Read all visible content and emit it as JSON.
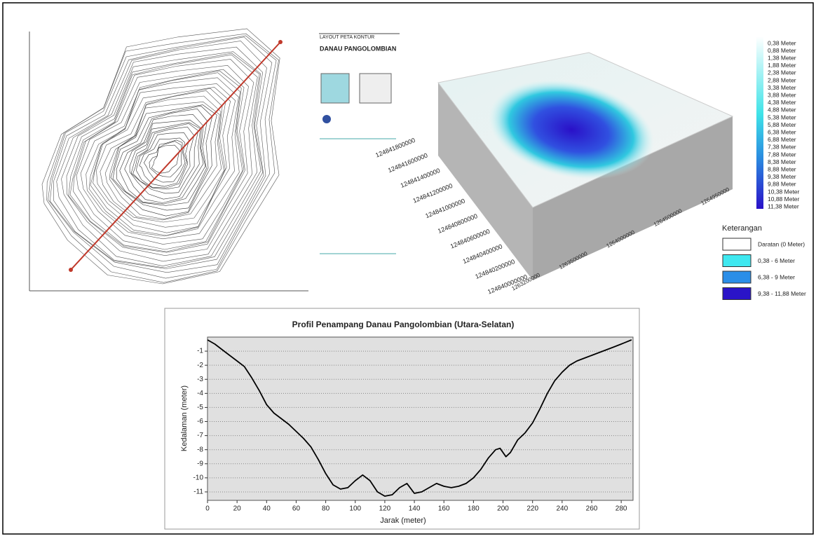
{
  "chart_data": {
    "type": "line",
    "title": "Profil Penampang Danau Pangolombian (Utara-Selatan)",
    "xlabel": "Jarak (meter)",
    "ylabel": "Kedalaman (meter)",
    "color": "#000000",
    "grid": true,
    "x": [
      0,
      5,
      10,
      15,
      20,
      25,
      30,
      35,
      40,
      45,
      50,
      55,
      60,
      65,
      70,
      75,
      80,
      85,
      90,
      95,
      100,
      105,
      110,
      115,
      120,
      125,
      130,
      135,
      140,
      145,
      150,
      155,
      160,
      165,
      170,
      175,
      180,
      185,
      190,
      195,
      198,
      202,
      205,
      210,
      215,
      220,
      225,
      230,
      235,
      240,
      245,
      250,
      255,
      260,
      265,
      270,
      275,
      280,
      287
    ],
    "values": [
      -0.2,
      -0.5,
      -0.9,
      -1.3,
      -1.7,
      -2.1,
      -2.9,
      -3.8,
      -4.8,
      -5.4,
      -5.8,
      -6.2,
      -6.7,
      -7.2,
      -7.8,
      -8.7,
      -9.7,
      -10.5,
      -10.8,
      -10.7,
      -10.2,
      -9.8,
      -10.2,
      -11.0,
      -11.3,
      -11.2,
      -10.7,
      -10.4,
      -11.1,
      -11.0,
      -10.7,
      -10.4,
      -10.6,
      -10.7,
      -10.6,
      -10.4,
      -10.0,
      -9.4,
      -8.6,
      -8.0,
      -7.9,
      -8.5,
      -8.2,
      -7.3,
      -6.8,
      -6.1,
      -5.1,
      -4.0,
      -3.1,
      -2.5,
      -2.0,
      -1.7,
      -1.5,
      -1.3,
      -1.1,
      -0.9,
      -0.7,
      -0.5,
      -0.2
    ],
    "xlim": [
      0,
      288
    ],
    "xticks": [
      0,
      20,
      40,
      60,
      80,
      100,
      120,
      140,
      160,
      180,
      200,
      220,
      240,
      260,
      280
    ],
    "ylim": [
      -11.6,
      0
    ],
    "yticks": [
      -1,
      -2,
      -3,
      -4,
      -5,
      -6,
      -7,
      -8,
      -9,
      -10,
      -11
    ]
  },
  "map_layout": {
    "title": "LAYOUT PETA KONTUR",
    "name": "DANAU PANGOLOMBIAN"
  },
  "surface_3d": {
    "y_labels": [
      "124840000000",
      "124840200000",
      "124840400000",
      "124840600000",
      "124840800000",
      "124841000000",
      "124841200000",
      "124841400000",
      "124841600000",
      "124841800000"
    ],
    "x_labels": [
      "1263200000",
      "1263500000",
      "1264000000",
      "1264500000",
      "1264950000"
    ]
  },
  "depth_scale": {
    "labels": [
      "0,38 Meter",
      "0,88 Meter",
      "1,38 Meter",
      "1,88 Meter",
      "2,38 Meter",
      "2,88 Meter",
      "3,38 Meter",
      "3,88 Meter",
      "4,38 Meter",
      "4,88 Meter",
      "5,38 Meter",
      "5,88 Meter",
      "6,38 Meter",
      "6,88 Meter",
      "7,38 Meter",
      "7,88 Meter",
      "8,38 Meter",
      "8,88 Meter",
      "9,38 Meter",
      "9,88 Meter",
      "10,38 Meter",
      "10,88 Meter",
      "11,38 Meter"
    ]
  },
  "legend": {
    "title": "Keterangan",
    "items": [
      {
        "label": "Daratan (0 Meter)",
        "color": "#ffffff"
      },
      {
        "label": "0,38 - 6 Meter",
        "color": "#3fe8f0"
      },
      {
        "label": "6,38 - 9 Meter",
        "color": "#2a8ee8"
      },
      {
        "label": "9,38 - 11,88 Meter",
        "color": "#2a14c8"
      }
    ]
  }
}
